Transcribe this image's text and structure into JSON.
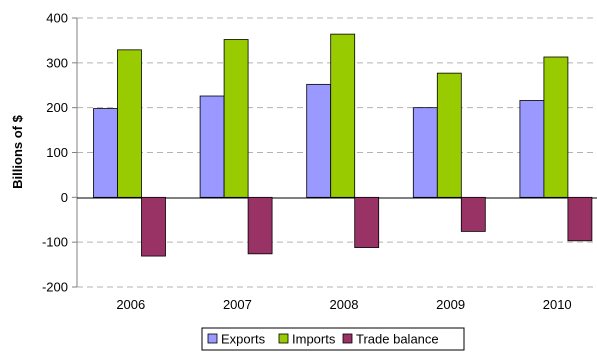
{
  "chart_data": {
    "type": "bar",
    "categories": [
      "2006",
      "2007",
      "2008",
      "2009",
      "2010"
    ],
    "series": [
      {
        "name": "Exports",
        "color": "#9999ff",
        "values": [
          198,
          226,
          252,
          200,
          216
        ]
      },
      {
        "name": "Imports",
        "color": "#99cc00",
        "values": [
          329,
          352,
          364,
          277,
          313
        ]
      },
      {
        "name": "Trade balance",
        "color": "#993366",
        "values": [
          -131,
          -126,
          -112,
          -76,
          -97
        ]
      }
    ],
    "ylabel": "Billions of $",
    "ylim": [
      -200,
      400
    ],
    "yticks": [
      "400",
      "300",
      "200",
      "100",
      "0",
      "-100",
      "-200"
    ],
    "ytick_values": [
      400,
      300,
      200,
      100,
      0,
      -100,
      -200
    ],
    "grid": true,
    "legend_position": "bottom"
  }
}
